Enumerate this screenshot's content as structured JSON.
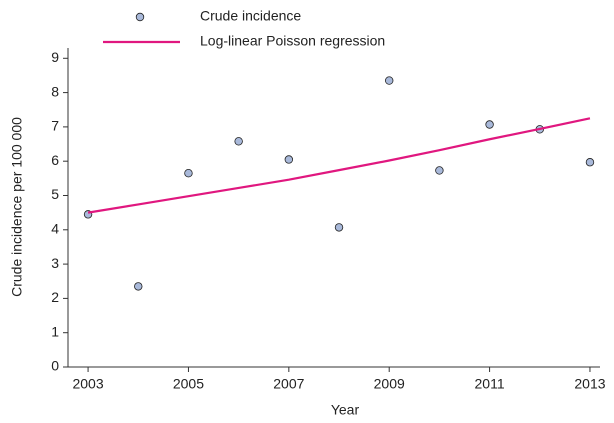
{
  "chart_data": {
    "type": "scatter",
    "x_label": "Year",
    "y_label": "Crude incidence per 100 000",
    "x": [
      2003,
      2004,
      2005,
      2006,
      2007,
      2008,
      2009,
      2010,
      2011,
      2012,
      2013
    ],
    "series": [
      {
        "name": "Crude incidence",
        "type": "scatter",
        "color": "#a9b9da",
        "values": [
          4.45,
          2.35,
          5.65,
          6.58,
          6.05,
          4.07,
          8.35,
          5.73,
          7.07,
          6.93,
          5.97
        ]
      },
      {
        "name": "Log-linear Poisson regression",
        "type": "line",
        "color": "#e0177f",
        "values": [
          4.5,
          4.74,
          4.98,
          5.22,
          5.46,
          5.74,
          6.02,
          6.32,
          6.64,
          6.94,
          7.25
        ]
      }
    ],
    "xlim": [
      2002.6,
      2013.2
    ],
    "xticks": [
      2003,
      2005,
      2007,
      2009,
      2011,
      2013
    ],
    "ylim": [
      0,
      9.3
    ],
    "yticks": [
      0,
      1,
      2,
      3,
      4,
      5,
      6,
      7,
      8,
      9
    ],
    "grid": false
  }
}
